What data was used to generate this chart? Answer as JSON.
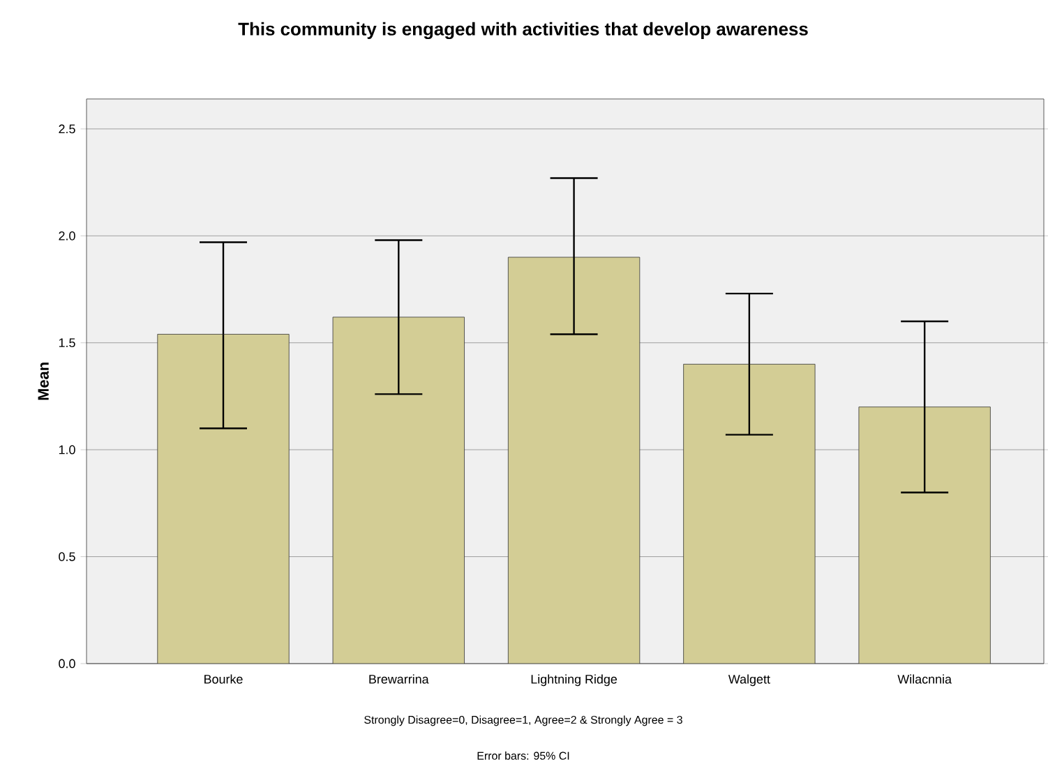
{
  "chart_data": {
    "type": "bar",
    "title": "This community is engaged with activities that develop awareness",
    "categories": [
      "Bourke",
      "Brewarrina",
      "Lightning Ridge",
      "Walgett",
      "Wilacnnia"
    ],
    "values": [
      1.54,
      1.62,
      1.9,
      1.4,
      1.2
    ],
    "errors": [
      [
        1.1,
        1.97
      ],
      [
        1.26,
        1.98
      ],
      [
        1.54,
        2.27
      ],
      [
        1.07,
        1.73
      ],
      [
        0.8,
        1.6
      ]
    ],
    "color": "#d3cd95",
    "xlabel": "Strongly Disagree=0, Disagree=1, Agree=2 & Strongly Agree = 3",
    "ylabel": "Mean",
    "ylim": [
      0,
      2.64
    ],
    "yticks": [
      {
        "value": 0,
        "label": "0.0"
      },
      {
        "value": 0.5,
        "label": "0.5"
      },
      {
        "value": 1,
        "label": "1.0"
      },
      {
        "value": 1.5,
        "label": "1.5"
      },
      {
        "value": 2,
        "label": "2.0"
      },
      {
        "value": 2.5,
        "label": "2.5"
      }
    ],
    "grid": "y",
    "annotations": [
      "Error bars: 95% CI"
    ]
  }
}
